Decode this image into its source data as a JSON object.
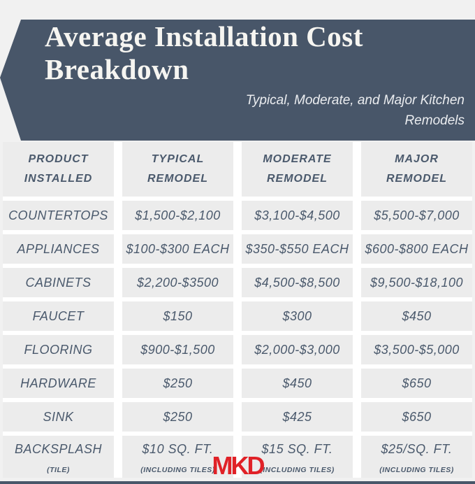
{
  "header": {
    "title_line1": "Average Installation Cost",
    "title_line2": "Breakdown",
    "subtitle_line1": "Typical, Moderate, and Major Kitchen",
    "subtitle_line2": "Remodels"
  },
  "logo": {
    "text": "MKD"
  },
  "colors": {
    "banner": "#485669",
    "cell_background": "#ECECEC",
    "table_text": "#4A596C",
    "logo_red": "#E02127",
    "page_background": "#F1F1F1"
  },
  "chart_data": {
    "type": "table",
    "title": "Average Installation Cost Breakdown",
    "subtitle": "Typical, Moderate, and Major Kitchen Remodels",
    "columns": [
      "PRODUCT\nINSTALLED",
      "TYPICAL\nREMODEL",
      "MODERATE\nREMODEL",
      "MAJOR\nREMODEL"
    ],
    "rows": [
      {
        "cells": [
          "COUNTERTOPS",
          "$1,500-$2,100",
          "$3,100-$4,500",
          "$5,500-$7,000"
        ]
      },
      {
        "cells": [
          "APPLIANCES",
          "$100-$300 EACH",
          "$350-$550 EACH",
          "$600-$800 EACH"
        ]
      },
      {
        "cells": [
          "CABINETS",
          "$2,200-$3500",
          "$4,500-$8,500",
          "$9,500-$18,100"
        ]
      },
      {
        "cells": [
          "FAUCET",
          "$150",
          "$300",
          "$450"
        ]
      },
      {
        "cells": [
          "FLOORING",
          "$900-$1,500",
          "$2,000-$3,000",
          "$3,500-$5,000"
        ]
      },
      {
        "cells": [
          "HARDWARE",
          "$250",
          "$450",
          "$650"
        ]
      },
      {
        "cells": [
          "SINK",
          "$250",
          "$425",
          "$650"
        ]
      },
      {
        "cells": [
          "BACKSPLASH",
          "$10 SQ. FT.",
          "$15 SQ. FT.",
          "$25/SQ. FT."
        ],
        "notes": [
          "(TILE)",
          "(INCLUDING TILES)",
          "(INCLUDING TILES)",
          "(INCLUDING TILES)"
        ]
      }
    ]
  }
}
